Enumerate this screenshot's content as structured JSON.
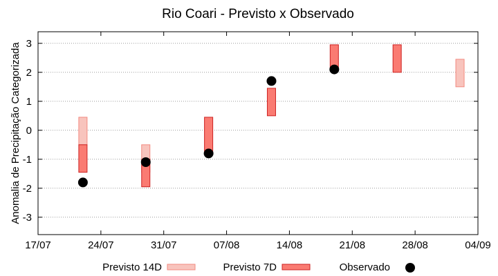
{
  "chart_data": {
    "type": "range-bar-with-points",
    "title": "Rio Coari - Previsto x Observado",
    "xlabel": "",
    "ylabel": "Anomalia de Precipitação Categorizada",
    "x_ticks": [
      "17/07",
      "24/07",
      "31/07",
      "07/08",
      "14/08",
      "21/08",
      "28/08",
      "04/09"
    ],
    "xlim": [
      "17/07",
      "04/09"
    ],
    "ylim": [
      -3.6,
      3.4
    ],
    "y_ticks": [
      -3,
      -2,
      -1,
      0,
      1,
      2,
      3
    ],
    "grid": "horizontal-dotted",
    "legend_placement": "bottom",
    "series": [
      {
        "name": "Previsto 14D",
        "kind": "range",
        "color": "#f8c4bd",
        "edge": "#f28a80",
        "data": [
          {
            "x": "22/07",
            "low": -0.5,
            "high": 0.45
          },
          {
            "x": "29/07",
            "low": -1.45,
            "high": -0.5
          },
          {
            "x": "02/09",
            "low": 1.5,
            "high": 2.45
          }
        ]
      },
      {
        "name": "Previsto 7D",
        "kind": "range",
        "color": "#fa7b72",
        "edge": "#cc2222",
        "data": [
          {
            "x": "22/07",
            "low": -1.45,
            "high": -0.5
          },
          {
            "x": "29/07",
            "low": -1.95,
            "high": -1.0
          },
          {
            "x": "05/08",
            "low": -0.8,
            "high": 0.45
          },
          {
            "x": "12/08",
            "low": 0.5,
            "high": 1.45
          },
          {
            "x": "19/08",
            "low": 2.1,
            "high": 2.95
          },
          {
            "x": "26/08",
            "low": 2.0,
            "high": 2.95
          }
        ]
      },
      {
        "name": "Observado",
        "kind": "point",
        "color": "#000000",
        "data": [
          {
            "x": "22/07",
            "y": -1.8
          },
          {
            "x": "29/07",
            "y": -1.1
          },
          {
            "x": "05/08",
            "y": -0.8
          },
          {
            "x": "12/08",
            "y": 1.7
          },
          {
            "x": "19/08",
            "y": 2.1
          }
        ]
      }
    ]
  }
}
